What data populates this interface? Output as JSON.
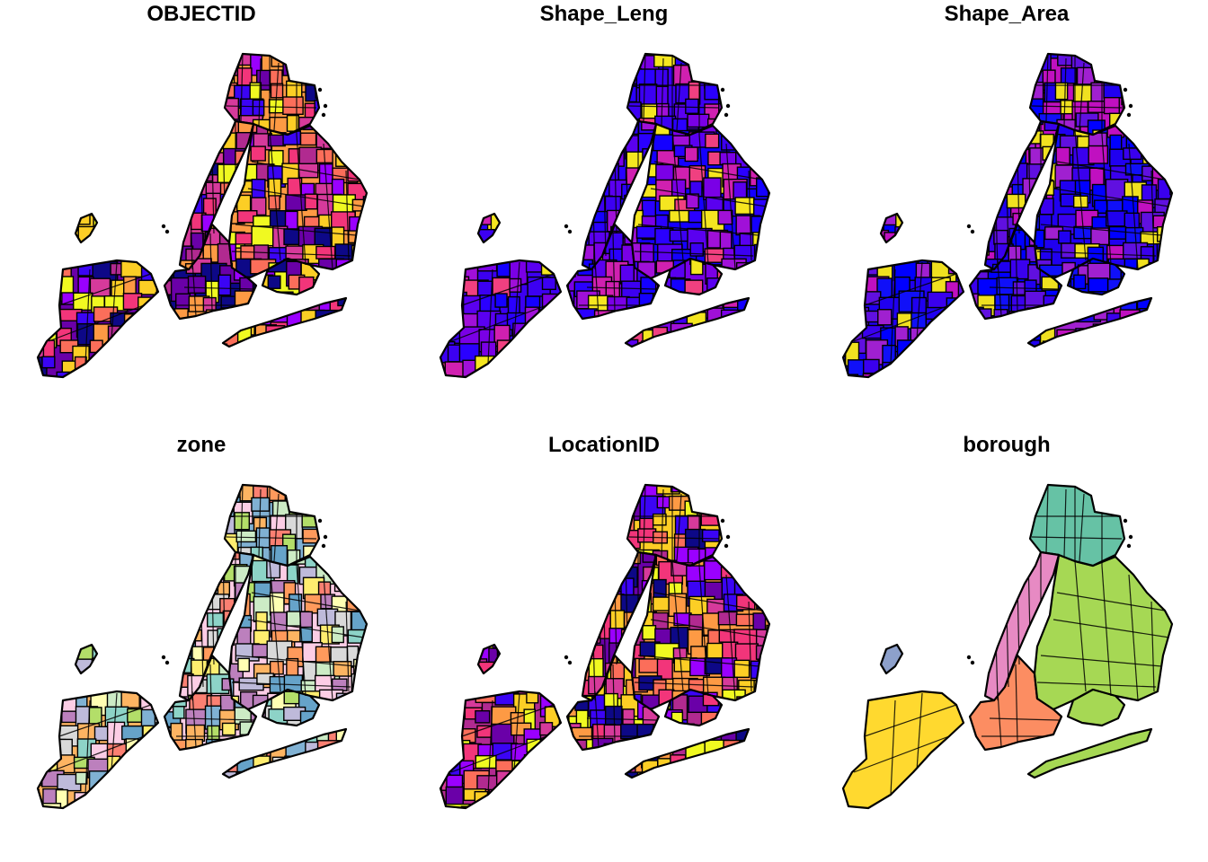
{
  "figure": {
    "panels": [
      {
        "title": "OBJECTID",
        "palette": [
          "#0d0887",
          "#3b04f5",
          "#6a00a8",
          "#9a00ff",
          "#b12a90",
          "#d63a9b",
          "#f2357a",
          "#fb6e5a",
          "#fd9a44",
          "#fcce25",
          "#f0f921"
        ]
      },
      {
        "title": "Shape_Leng",
        "palette": [
          "#1400ff",
          "#2a00ff",
          "#3c00f2",
          "#5a00f0",
          "#7a00e6",
          "#a010d8",
          "#d020b0",
          "#f04080",
          "#f5e620"
        ]
      },
      {
        "title": "Shape_Area",
        "palette": [
          "#0000ff",
          "#1010f8",
          "#2000f0",
          "#3a00ee",
          "#6010e0",
          "#a020d0",
          "#c010c0",
          "#f0e020"
        ]
      },
      {
        "title": "zone",
        "palette": [
          "#8dd3c7",
          "#ffffb3",
          "#bebada",
          "#fb8072",
          "#80b1d3",
          "#fdb462",
          "#b3de69",
          "#fccde5",
          "#d9d9d9",
          "#bc80bd",
          "#ccebc5",
          "#ffed6f",
          "#66a3c9",
          "#ff9a5c"
        ]
      },
      {
        "title": "LocationID",
        "palette": [
          "#0d0887",
          "#3b04f5",
          "#6a00a8",
          "#9a00ff",
          "#b12a90",
          "#d63a9b",
          "#f2357a",
          "#fb6e5a",
          "#fd9a44",
          "#fcce25",
          "#f0f921"
        ]
      },
      {
        "title": "borough",
        "palette": [
          "#66c2a5",
          "#fc8d62",
          "#8da0cb",
          "#e78ac3",
          "#a6d854",
          "#ffd92f"
        ]
      }
    ]
  }
}
